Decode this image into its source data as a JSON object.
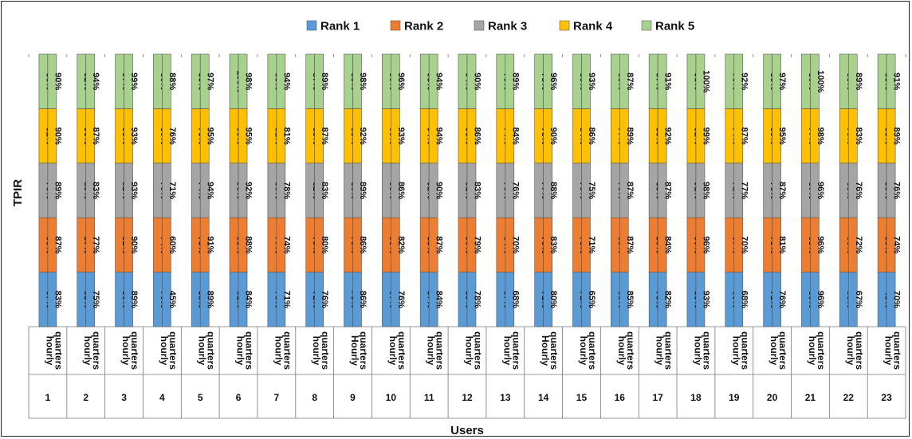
{
  "chart_data": {
    "type": "bar",
    "stacked": true,
    "ylabel": "TPIR",
    "xlabel": "Users",
    "legend_position": "top",
    "series_names": [
      "Rank 1",
      "Rank 2",
      "Rank 3",
      "Rank 4",
      "Rank 5"
    ],
    "colors": [
      "#5b9bd5",
      "#ed7d31",
      "#a5a5a5",
      "#ffc000",
      "#a9d18e"
    ],
    "users": [
      "1",
      "2",
      "3",
      "4",
      "5",
      "6",
      "7",
      "8",
      "9",
      "10",
      "11",
      "12",
      "13",
      "14",
      "15",
      "16",
      "17",
      "18",
      "19",
      "20",
      "21",
      "22",
      "23"
    ],
    "groups": [
      {
        "user": "1",
        "bars": [
          {
            "label": "hourly",
            "values": [
              67,
              68,
              76,
              82,
              86
            ]
          },
          {
            "label": "quarters",
            "values": [
              83,
              87,
              89,
              90,
              90
            ]
          }
        ]
      },
      {
        "user": "2",
        "bars": [
          {
            "label": "hourly",
            "values": [
              85,
              87,
              89,
              90,
              92
            ]
          },
          {
            "label": "quarters",
            "values": [
              75,
              77,
              83,
              87,
              94
            ]
          }
        ]
      },
      {
        "user": "3",
        "bars": [
          {
            "label": "hourly",
            "values": [
              90,
              92,
              92,
              95,
              97
            ]
          },
          {
            "label": "quarters",
            "values": [
              89,
              90,
              93,
              93,
              99
            ]
          }
        ]
      },
      {
        "user": "4",
        "bars": [
          {
            "label": "hourly",
            "values": [
              70,
              74,
              79,
              80,
              83
            ]
          },
          {
            "label": "quarters",
            "values": [
              45,
              60,
              71,
              76,
              88
            ]
          }
        ]
      },
      {
        "user": "5",
        "bars": [
          {
            "label": "hourly",
            "values": [
              58,
              73,
              74,
              76,
              80
            ]
          },
          {
            "label": "quarters",
            "values": [
              89,
              91,
              94,
              95,
              97
            ]
          }
        ]
      },
      {
        "user": "6",
        "bars": [
          {
            "label": "hourly",
            "values": [
              91,
              93,
              96,
              99,
              100
            ]
          },
          {
            "label": "quarters",
            "values": [
              84,
              88,
              92,
              95,
              98
            ]
          }
        ]
      },
      {
        "user": "7",
        "bars": [
          {
            "label": "hourly",
            "values": [
              75,
              77,
              80,
              81,
              83
            ]
          },
          {
            "label": "quarters",
            "values": [
              71,
              74,
              78,
              81,
              94
            ]
          }
        ]
      },
      {
        "user": "8",
        "bars": [
          {
            "label": "hourly",
            "values": [
              72,
              79,
              82,
              85,
              87
            ]
          },
          {
            "label": "quarters",
            "values": [
              76,
              80,
              83,
              87,
              89
            ]
          }
        ]
      },
      {
        "user": "9",
        "bars": [
          {
            "label": "Hourly",
            "values": [
              75,
              78,
              80,
              83,
              85
            ]
          },
          {
            "label": "quarters",
            "values": [
              86,
              86,
              89,
              92,
              98
            ]
          }
        ]
      },
      {
        "user": "10",
        "bars": [
          {
            "label": "hourly",
            "values": [
              97,
              98,
              99,
              99,
              99
            ]
          },
          {
            "label": "quarters",
            "values": [
              76,
              82,
              86,
              93,
              96
            ]
          }
        ]
      },
      {
        "user": "11",
        "bars": [
          {
            "label": "hourly",
            "values": [
              87,
              88,
              92,
              94,
              95
            ]
          },
          {
            "label": "quarters",
            "values": [
              84,
              87,
              90,
              94,
              94
            ]
          }
        ]
      },
      {
        "user": "12",
        "bars": [
          {
            "label": "hourly",
            "values": [
              89,
              90,
              91,
              93,
              94
            ]
          },
          {
            "label": "quarters",
            "values": [
              78,
              79,
              83,
              86,
              90
            ]
          }
        ]
      },
      {
        "user": "13",
        "bars": [
          {
            "label": "hourly",
            "values": [
              57,
              64,
              70,
              74,
              75
            ]
          },
          {
            "label": "quarters",
            "values": [
              68,
              70,
              76,
              84,
              89
            ]
          }
        ]
      },
      {
        "user": "14",
        "bars": [
          {
            "label": "Hourly",
            "values": [
              71,
              76,
              77,
              78,
              78
            ]
          },
          {
            "label": "quarters",
            "values": [
              80,
              83,
              88,
              90,
              96
            ]
          }
        ]
      },
      {
        "user": "15",
        "bars": [
          {
            "label": "hourly",
            "values": [
              71,
              78,
              79,
              84,
              86
            ]
          },
          {
            "label": "quarters",
            "values": [
              65,
              71,
              75,
              86,
              93
            ]
          }
        ]
      },
      {
        "user": "16",
        "bars": [
          {
            "label": "hourly",
            "values": [
              68,
              68,
              76,
              77,
              83
            ]
          },
          {
            "label": "quarters",
            "values": [
              85,
              87,
              87,
              89,
              87
            ]
          }
        ]
      },
      {
        "user": "17",
        "bars": [
          {
            "label": "hourly",
            "values": [
              78,
              80,
              83,
              85,
              87
            ]
          },
          {
            "label": "quarters",
            "values": [
              82,
              84,
              87,
              92,
              91
            ]
          }
        ]
      },
      {
        "user": "18",
        "bars": [
          {
            "label": "hourly",
            "values": [
              88,
              90,
              91,
              92,
              93
            ]
          },
          {
            "label": "quarters",
            "values": [
              93,
              96,
              98,
              99,
              100
            ]
          }
        ]
      },
      {
        "user": "19",
        "bars": [
          {
            "label": "hourly",
            "values": [
              65,
              67,
              72,
              74,
              76
            ]
          },
          {
            "label": "quarters",
            "values": [
              68,
              70,
              77,
              87,
              92
            ]
          }
        ]
      },
      {
        "user": "20",
        "bars": [
          {
            "label": "hourly",
            "values": [
              71,
              73,
              76,
              83,
              86
            ]
          },
          {
            "label": "quarters",
            "values": [
              76,
              81,
              87,
              95,
              97
            ]
          }
        ]
      },
      {
        "user": "21",
        "bars": [
          {
            "label": "hourly",
            "values": [
              60,
              65,
              67,
              77,
              80
            ]
          },
          {
            "label": "quarters",
            "values": [
              96,
              96,
              96,
              98,
              100
            ]
          }
        ]
      },
      {
        "user": "22",
        "bars": [
          {
            "label": "hourly",
            "values": [
              58,
              60,
              65,
              79,
              83
            ]
          },
          {
            "label": "quarters",
            "values": [
              67,
              72,
              76,
              83,
              89
            ]
          }
        ]
      },
      {
        "user": "23",
        "bars": [
          {
            "label": "hourly",
            "values": [
              48,
              50,
              50,
              65,
              69
            ]
          },
          {
            "label": "quarters",
            "values": [
              70,
              74,
              76,
              89,
              91
            ]
          }
        ]
      }
    ]
  }
}
